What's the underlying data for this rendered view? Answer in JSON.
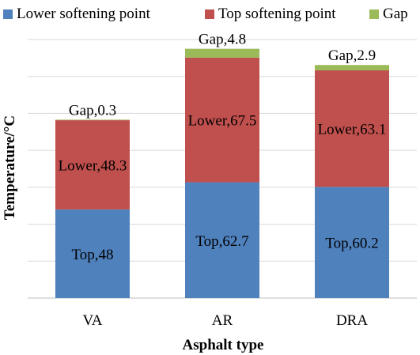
{
  "chart_data": {
    "type": "bar",
    "stacked": true,
    "categories": [
      "VA",
      "AR",
      "DRA"
    ],
    "series": [
      {
        "name": "Lower softening point",
        "color": "#4f81bd",
        "values": [
          48,
          62.7,
          60.2
        ],
        "labels": [
          "Top,48",
          "Top,62.7",
          "Top,60.2"
        ]
      },
      {
        "name": "Top softening point",
        "color": "#c0504d",
        "values": [
          48.3,
          67.5,
          63.1
        ],
        "labels": [
          "Lower,48.3",
          "Lower,67.5",
          "Lower,63.1"
        ]
      },
      {
        "name": "Gap",
        "color": "#9bbb59",
        "values": [
          0.3,
          4.8,
          2.9
        ],
        "labels": [
          "Gap,0.3",
          "Gap,4.8",
          "Gap,2.9"
        ]
      }
    ],
    "xlabel": "Asphalt type",
    "ylabel": "Temperature/°C",
    "ylim": [
      0,
      140
    ],
    "ytick_step": 20,
    "ytick_labels_shown": false,
    "grid": true,
    "legend": "top"
  }
}
